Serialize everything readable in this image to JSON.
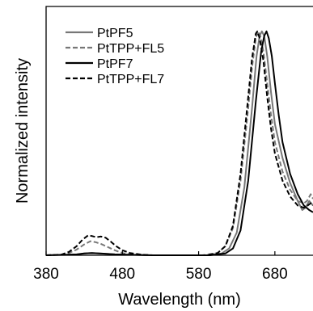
{
  "chart_data": {
    "type": "line",
    "xlabel": "Wavelength (nm)",
    "ylabel": "Normalized intensity",
    "xlim": [
      380,
      730
    ],
    "ylim": [
      0,
      1.1
    ],
    "x_ticks": [
      "380",
      "480",
      "580",
      "680"
    ],
    "legend_position": "top-left",
    "grid": false,
    "series": [
      {
        "name": "PtPF5",
        "color": "#777777",
        "style": "solid",
        "points": [
          [
            380,
            0.0
          ],
          [
            420,
            0.003
          ],
          [
            430,
            0.008
          ],
          [
            440,
            0.01
          ],
          [
            455,
            0.007
          ],
          [
            470,
            0.004
          ],
          [
            490,
            0.002
          ],
          [
            520,
            0.0
          ],
          [
            590,
            0.0
          ],
          [
            610,
            0.008
          ],
          [
            620,
            0.03
          ],
          [
            630,
            0.1
          ],
          [
            640,
            0.3
          ],
          [
            650,
            0.65
          ],
          [
            656,
            0.88
          ],
          [
            660,
            0.97
          ],
          [
            663,
            0.99
          ],
          [
            666,
            0.97
          ],
          [
            670,
            0.88
          ],
          [
            675,
            0.72
          ],
          [
            680,
            0.58
          ],
          [
            690,
            0.43
          ],
          [
            700,
            0.32
          ],
          [
            710,
            0.24
          ],
          [
            716,
            0.2
          ],
          [
            720,
            0.21
          ],
          [
            725,
            0.24
          ],
          [
            730,
            0.22
          ]
        ]
      },
      {
        "name": "PtTPP+FL5",
        "color": "#777777",
        "style": "dashed",
        "points": [
          [
            380,
            0.0
          ],
          [
            400,
            0.002
          ],
          [
            410,
            0.01
          ],
          [
            420,
            0.025
          ],
          [
            430,
            0.048
          ],
          [
            438,
            0.062
          ],
          [
            445,
            0.058
          ],
          [
            452,
            0.05
          ],
          [
            460,
            0.038
          ],
          [
            470,
            0.022
          ],
          [
            480,
            0.01
          ],
          [
            490,
            0.004
          ],
          [
            510,
            0.0
          ],
          [
            585,
            0.0
          ],
          [
            605,
            0.01
          ],
          [
            615,
            0.04
          ],
          [
            625,
            0.12
          ],
          [
            635,
            0.33
          ],
          [
            645,
            0.65
          ],
          [
            650,
            0.83
          ],
          [
            655,
            0.96
          ],
          [
            658,
            0.99
          ],
          [
            661,
            0.97
          ],
          [
            665,
            0.9
          ],
          [
            670,
            0.76
          ],
          [
            675,
            0.62
          ],
          [
            680,
            0.5
          ],
          [
            690,
            0.37
          ],
          [
            700,
            0.29
          ],
          [
            710,
            0.24
          ],
          [
            718,
            0.23
          ],
          [
            722,
            0.24
          ],
          [
            727,
            0.27
          ],
          [
            730,
            0.25
          ]
        ]
      },
      {
        "name": "PtPF7",
        "color": "#000000",
        "style": "solid",
        "points": [
          [
            380,
            0.0
          ],
          [
            420,
            0.004
          ],
          [
            430,
            0.008
          ],
          [
            440,
            0.01
          ],
          [
            455,
            0.007
          ],
          [
            470,
            0.004
          ],
          [
            490,
            0.002
          ],
          [
            520,
            0.0
          ],
          [
            595,
            0.0
          ],
          [
            615,
            0.008
          ],
          [
            625,
            0.03
          ],
          [
            635,
            0.11
          ],
          [
            645,
            0.33
          ],
          [
            655,
            0.68
          ],
          [
            662,
            0.9
          ],
          [
            666,
            0.97
          ],
          [
            669,
            0.99
          ],
          [
            672,
            0.96
          ],
          [
            676,
            0.88
          ],
          [
            680,
            0.76
          ],
          [
            685,
            0.62
          ],
          [
            690,
            0.5
          ],
          [
            700,
            0.36
          ],
          [
            710,
            0.27
          ],
          [
            718,
            0.22
          ],
          [
            725,
            0.2
          ],
          [
            730,
            0.19
          ]
        ]
      },
      {
        "name": "PtTPP+FL7",
        "color": "#000000",
        "style": "dashed",
        "points": [
          [
            380,
            0.0
          ],
          [
            400,
            0.003
          ],
          [
            410,
            0.015
          ],
          [
            420,
            0.04
          ],
          [
            428,
            0.07
          ],
          [
            435,
            0.088
          ],
          [
            440,
            0.085
          ],
          [
            446,
            0.08
          ],
          [
            452,
            0.083
          ],
          [
            458,
            0.078
          ],
          [
            465,
            0.06
          ],
          [
            472,
            0.04
          ],
          [
            480,
            0.022
          ],
          [
            490,
            0.01
          ],
          [
            505,
            0.003
          ],
          [
            520,
            0.0
          ],
          [
            590,
            0.0
          ],
          [
            605,
            0.01
          ],
          [
            615,
            0.04
          ],
          [
            625,
            0.13
          ],
          [
            635,
            0.36
          ],
          [
            645,
            0.7
          ],
          [
            650,
            0.87
          ],
          [
            655,
            0.98
          ],
          [
            657,
            0.99
          ],
          [
            660,
            0.96
          ],
          [
            665,
            0.86
          ],
          [
            670,
            0.7
          ],
          [
            675,
            0.56
          ],
          [
            680,
            0.45
          ],
          [
            690,
            0.33
          ],
          [
            700,
            0.26
          ],
          [
            710,
            0.22
          ],
          [
            718,
            0.21
          ],
          [
            723,
            0.22
          ],
          [
            727,
            0.23
          ],
          [
            730,
            0.22
          ]
        ]
      }
    ]
  }
}
